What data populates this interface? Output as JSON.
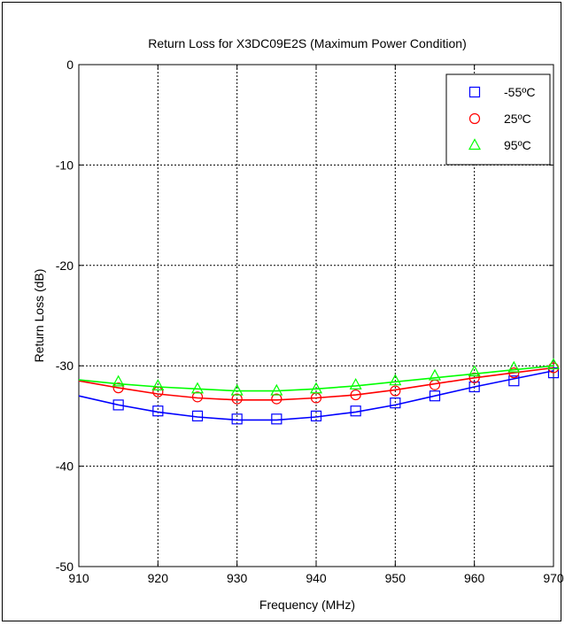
{
  "chart_data": {
    "type": "line",
    "title": "Return Loss for X3DC09E2S (Maximum Power Condition)",
    "xlabel": "Frequency (MHz)",
    "ylabel": "Return Loss (dB)",
    "xlim": [
      910,
      970
    ],
    "ylim": [
      -50,
      0
    ],
    "xticks": [
      910,
      920,
      930,
      940,
      950,
      960,
      970
    ],
    "yticks": [
      0,
      -10,
      -20,
      -30,
      -40,
      -50
    ],
    "grid": true,
    "legend_position": "top-right",
    "series": [
      {
        "name": "-55ºC",
        "color": "#0000ff",
        "marker": "square",
        "line": {
          "x": [
            910,
            915,
            920,
            925,
            930,
            935,
            940,
            945,
            950,
            955,
            960,
            965,
            970
          ],
          "y": [
            -33.0,
            -33.9,
            -34.6,
            -35.1,
            -35.4,
            -35.4,
            -35.1,
            -34.6,
            -33.9,
            -33.0,
            -32.1,
            -31.3,
            -30.5
          ]
        },
        "markers": {
          "x": [
            915,
            920,
            925,
            930,
            935,
            940,
            945,
            950,
            955,
            960,
            965,
            970
          ],
          "y": [
            -33.9,
            -34.5,
            -35.0,
            -35.3,
            -35.3,
            -35.0,
            -34.5,
            -33.7,
            -33.0,
            -32.1,
            -31.5,
            -30.7
          ]
        }
      },
      {
        "name": "25ºC",
        "color": "#ff0000",
        "marker": "circle",
        "line": {
          "x": [
            910,
            915,
            920,
            925,
            930,
            935,
            940,
            945,
            950,
            955,
            960,
            965,
            970
          ],
          "y": [
            -31.5,
            -32.2,
            -32.8,
            -33.2,
            -33.4,
            -33.4,
            -33.2,
            -32.9,
            -32.4,
            -31.8,
            -31.2,
            -30.7,
            -30.2
          ]
        },
        "markers": {
          "x": [
            915,
            920,
            925,
            930,
            935,
            940,
            945,
            950,
            955,
            960,
            965,
            970
          ],
          "y": [
            -32.2,
            -32.6,
            -33.1,
            -33.3,
            -33.3,
            -33.2,
            -32.9,
            -32.5,
            -31.9,
            -31.2,
            -30.7,
            -30.2
          ]
        }
      },
      {
        "name": "95ºC",
        "color": "#00ff00",
        "marker": "triangle",
        "line": {
          "x": [
            910,
            915,
            920,
            925,
            930,
            935,
            940,
            945,
            950,
            955,
            960,
            965,
            970
          ],
          "y": [
            -31.4,
            -31.8,
            -32.1,
            -32.3,
            -32.5,
            -32.5,
            -32.3,
            -32.0,
            -31.6,
            -31.2,
            -30.8,
            -30.4,
            -30.0
          ]
        },
        "markers": {
          "x": [
            915,
            920,
            925,
            930,
            935,
            940,
            945,
            950,
            955,
            960,
            965,
            970
          ],
          "y": [
            -31.6,
            -32.0,
            -32.3,
            -32.5,
            -32.5,
            -32.3,
            -31.9,
            -31.5,
            -31.0,
            -30.6,
            -30.2,
            -29.9
          ]
        }
      }
    ]
  }
}
